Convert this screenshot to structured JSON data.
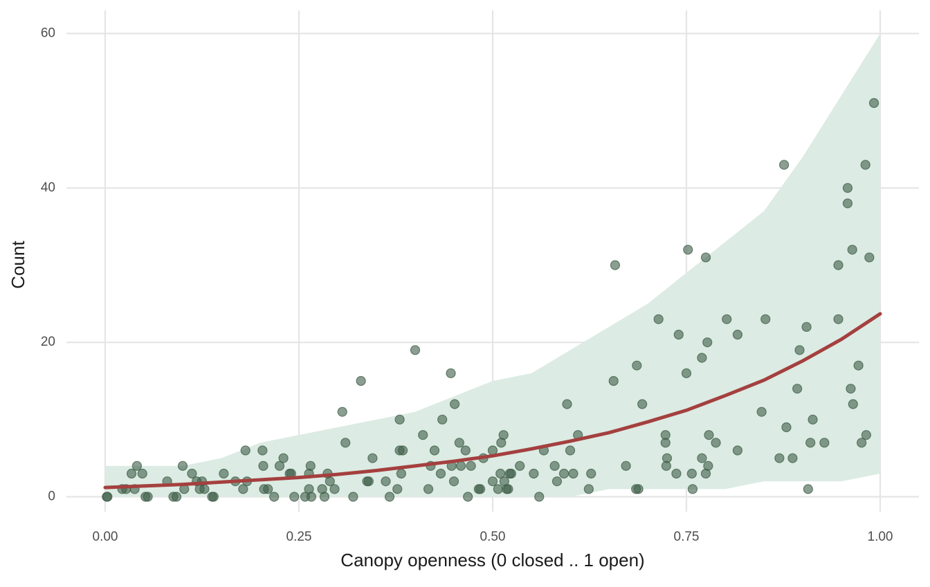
{
  "chart_data": {
    "type": "scatter",
    "x_label": "Canopy openness (0 closed .. 1 open)",
    "y_label": "Count",
    "color": "#3d5e47",
    "xlim": [
      -0.05,
      1.05
    ],
    "ylim": [
      -3,
      63
    ],
    "xticks": [
      {
        "value": 0,
        "label": "0.00"
      },
      {
        "value": 0.25,
        "label": "0.25"
      },
      {
        "value": 0.5,
        "label": "0.50"
      },
      {
        "value": 0.75,
        "label": "0.75"
      },
      {
        "value": 1,
        "label": "1.00"
      }
    ],
    "yticks": [
      0,
      20,
      40,
      60
    ],
    "grid": true,
    "x": [
      0.002,
      0.003,
      0.022,
      0.027,
      0.034,
      0.038,
      0.041,
      0.048,
      0.052,
      0.055,
      0.08,
      0.088,
      0.092,
      0.1,
      0.102,
      0.112,
      0.118,
      0.122,
      0.125,
      0.128,
      0.138,
      0.14,
      0.153,
      0.168,
      0.178,
      0.181,
      0.183,
      0.203,
      0.204,
      0.205,
      0.21,
      0.218,
      0.225,
      0.23,
      0.238,
      0.24,
      0.244,
      0.258,
      0.263,
      0.263,
      0.265,
      0.266,
      0.28,
      0.283,
      0.287,
      0.29,
      0.296,
      0.306,
      0.31,
      0.32,
      0.33,
      0.338,
      0.34,
      0.345,
      0.362,
      0.367,
      0.377,
      0.38,
      0.38,
      0.382,
      0.384,
      0.4,
      0.41,
      0.417,
      0.42,
      0.425,
      0.433,
      0.435,
      0.446,
      0.447,
      0.45,
      0.451,
      0.457,
      0.459,
      0.465,
      0.468,
      0.472,
      0.482,
      0.484,
      0.488,
      0.5,
      0.5,
      0.507,
      0.51,
      0.511,
      0.514,
      0.515,
      0.518,
      0.52,
      0.522,
      0.524,
      0.535,
      0.553,
      0.56,
      0.566,
      0.58,
      0.583,
      0.592,
      0.596,
      0.6,
      0.604,
      0.61,
      0.624,
      0.627,
      0.656,
      0.658,
      0.672,
      0.685,
      0.688,
      0.686,
      0.693,
      0.714,
      0.723,
      0.723,
      0.724,
      0.725,
      0.737,
      0.74,
      0.75,
      0.752,
      0.757,
      0.758,
      0.77,
      0.77,
      0.775,
      0.775,
      0.777,
      0.778,
      0.779,
      0.788,
      0.802,
      0.816,
      0.816,
      0.847,
      0.852,
      0.87,
      0.876,
      0.879,
      0.887,
      0.893,
      0.896,
      0.905,
      0.907,
      0.913,
      0.91,
      0.928,
      0.946,
      0.946,
      0.958,
      0.958,
      0.962,
      0.964,
      0.965,
      0.972,
      0.976,
      0.981,
      0.982,
      0.986,
      0.992
    ],
    "y": [
      0,
      0,
      1,
      1,
      3,
      1,
      4,
      3,
      0,
      0,
      2,
      0,
      0,
      4,
      1,
      3,
      2,
      1,
      2,
      1,
      0,
      0,
      3,
      2,
      1,
      6,
      2,
      6,
      4,
      1,
      1,
      0,
      4,
      5,
      3,
      3,
      0,
      0,
      1,
      3,
      4,
      0,
      1,
      0,
      3,
      2,
      1,
      11,
      7,
      0,
      15,
      2,
      2,
      5,
      2,
      0,
      1,
      10,
      6,
      3,
      6,
      19,
      8,
      1,
      4,
      6,
      3,
      10,
      16,
      4,
      2,
      12,
      7,
      4,
      6,
      0,
      4,
      1,
      1,
      5,
      6,
      2,
      1,
      3,
      7,
      8,
      2,
      1,
      1,
      3,
      3,
      4,
      3,
      0,
      6,
      4,
      2,
      3,
      12,
      6,
      3,
      8,
      1,
      3,
      15,
      30,
      4,
      1,
      1,
      17,
      12,
      23,
      8,
      7,
      4,
      5,
      3,
      21,
      16,
      32,
      3,
      1,
      5,
      18,
      31,
      3,
      20,
      4,
      8,
      7,
      23,
      21,
      6,
      11,
      23,
      5,
      43,
      9,
      5,
      14,
      19,
      22,
      1,
      10,
      7,
      7,
      23,
      30,
      40,
      38,
      14,
      32,
      12,
      17,
      7,
      43,
      8,
      31,
      51
    ],
    "fit": {
      "color": "#a4403f",
      "x": [
        0,
        0.05,
        0.1,
        0.15,
        0.2,
        0.25,
        0.3,
        0.35,
        0.4,
        0.45,
        0.5,
        0.55,
        0.6,
        0.65,
        0.7,
        0.75,
        0.8,
        0.85,
        0.9,
        0.95,
        1
      ],
      "values": [
        1.2,
        1.4,
        1.6,
        1.9,
        2.2,
        2.5,
        2.9,
        3.4,
        4.0,
        4.6,
        5.3,
        6.2,
        7.2,
        8.3,
        9.7,
        11.2,
        13.1,
        15.1,
        17.6,
        20.4,
        23.7
      ]
    },
    "ribbon": {
      "color": "#dcebe3",
      "x": [
        0,
        0.05,
        0.1,
        0.15,
        0.2,
        0.25,
        0.3,
        0.35,
        0.4,
        0.45,
        0.5,
        0.55,
        0.6,
        0.65,
        0.7,
        0.75,
        0.8,
        0.85,
        0.9,
        0.95,
        1
      ],
      "lower": [
        0,
        0,
        0,
        0,
        0,
        0,
        0,
        0,
        0,
        0,
        0,
        0,
        0,
        1,
        1,
        1,
        1,
        2,
        2,
        2,
        3
      ],
      "upper": [
        4,
        4,
        4,
        5,
        7,
        8,
        9,
        10,
        11,
        13,
        15,
        16,
        19,
        22,
        25,
        29,
        33,
        37,
        44,
        52,
        60
      ]
    }
  }
}
